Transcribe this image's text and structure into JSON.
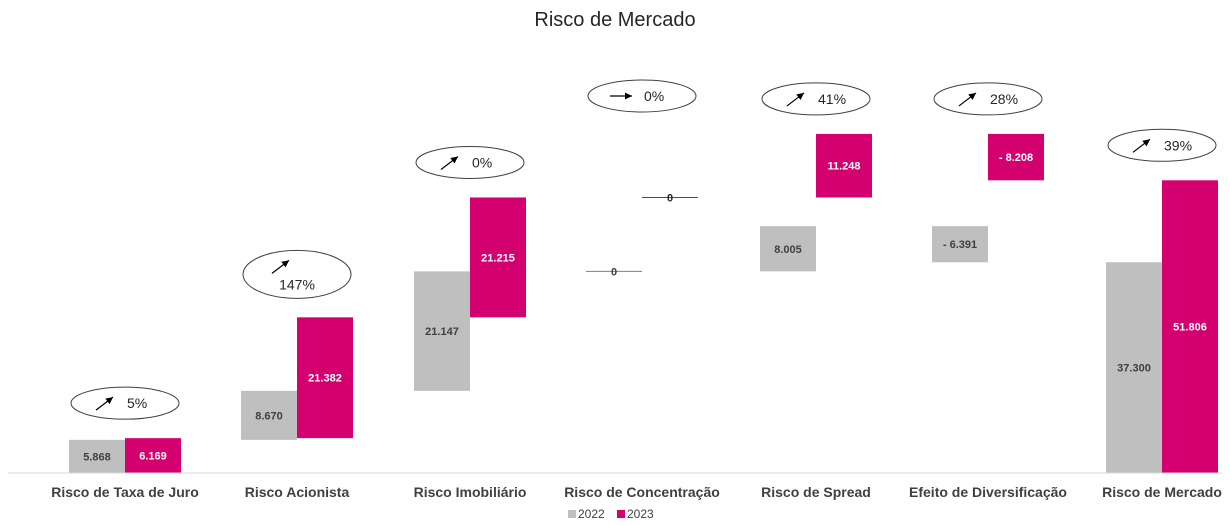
{
  "chart_data": {
    "type": "bar",
    "subtype": "waterfall",
    "title": "Risco de Mercado",
    "xlabel": "",
    "ylabel": "",
    "categories": [
      "Risco de Taxa de Juro",
      "Risco Acionista",
      "Risco Imobiliário",
      "Risco de Concentração",
      "Risco de Spread",
      "Efeito de Diversificação",
      "Risco de Mercado"
    ],
    "series": [
      {
        "name": "2022",
        "color": "#bfbfbf",
        "values": [
          5868,
          8670,
          21147,
          0,
          8005,
          -6391,
          37300
        ],
        "labels": [
          "5.868",
          "8.670",
          "21.147",
          "0",
          "8.005",
          "- 6.391",
          "37.300"
        ]
      },
      {
        "name": "2023",
        "color": "#d4006f",
        "values": [
          6169,
          21382,
          21215,
          0,
          11248,
          -8208,
          51806
        ],
        "labels": [
          "6.169",
          "21.382",
          "21.215",
          "0",
          "11.248",
          "- 8.208",
          "51.806"
        ]
      }
    ],
    "changes": [
      {
        "label": "5%",
        "direction": "up"
      },
      {
        "label": "147%",
        "direction": "up"
      },
      {
        "label": "0%",
        "direction": "up"
      },
      {
        "label": "0%",
        "direction": "flat"
      },
      {
        "label": "41%",
        "direction": "up"
      },
      {
        "label": "28%",
        "direction": "up"
      },
      {
        "label": "39%",
        "direction": "up"
      }
    ],
    "legend_position": "bottom",
    "grid": false
  }
}
